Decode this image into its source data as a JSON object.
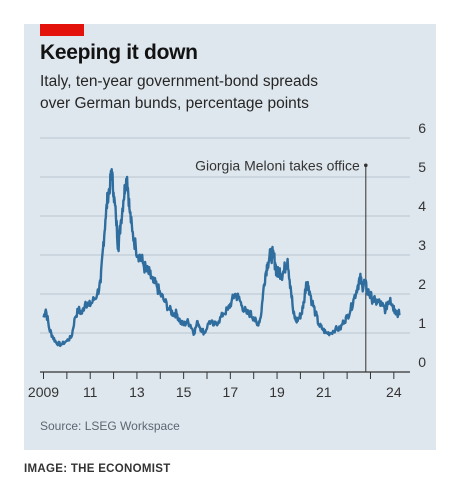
{
  "header": {
    "title": "Keeping it down",
    "subtitle_line1": "Italy, ten-year government-bond spreads",
    "subtitle_line2": "over German bunds, percentage points"
  },
  "footer": {
    "source": "Source: LSEG Workspace",
    "credit": "IMAGE: THE ECONOMIST"
  },
  "colors": {
    "accent": "#e3120b",
    "line": "#2e6d9e",
    "background": "#dfe7ee",
    "grid": "#b7c4cf"
  },
  "chart_data": {
    "type": "line",
    "title": "Keeping it down",
    "subtitle": "Italy, ten-year government-bond spreads over German bunds, percentage points",
    "ylabel": "",
    "xlabel": "",
    "ylim": [
      0,
      6
    ],
    "xlim": [
      2008.85,
      2024.35
    ],
    "y_ticks": [
      "0",
      "1",
      "2",
      "3",
      "4",
      "5",
      "6"
    ],
    "x_tick_labels": [
      {
        "x": 2009,
        "label": "2009"
      },
      {
        "x": 2011,
        "label": "11"
      },
      {
        "x": 2013,
        "label": "13"
      },
      {
        "x": 2015,
        "label": "15"
      },
      {
        "x": 2017,
        "label": "17"
      },
      {
        "x": 2019,
        "label": "19"
      },
      {
        "x": 2021,
        "label": "21"
      },
      {
        "x": 2024,
        "label": "24"
      }
    ],
    "grid": true,
    "annotation": {
      "x": 2022.8,
      "label": "Giorgia Meloni takes office"
    },
    "series": [
      {
        "values": [
          [
            2009.0,
            1.4
          ],
          [
            2009.1,
            1.6
          ],
          [
            2009.25,
            1.1
          ],
          [
            2009.4,
            0.9
          ],
          [
            2009.55,
            0.75
          ],
          [
            2009.75,
            0.7
          ],
          [
            2010.0,
            0.8
          ],
          [
            2010.2,
            0.9
          ],
          [
            2010.35,
            1.4
          ],
          [
            2010.5,
            1.6
          ],
          [
            2010.65,
            1.5
          ],
          [
            2010.8,
            1.8
          ],
          [
            2010.95,
            1.7
          ],
          [
            2011.1,
            1.8
          ],
          [
            2011.3,
            2.0
          ],
          [
            2011.45,
            2.3
          ],
          [
            2011.55,
            3.2
          ],
          [
            2011.65,
            3.9
          ],
          [
            2011.75,
            4.5
          ],
          [
            2011.85,
            4.8
          ],
          [
            2011.92,
            5.2
          ],
          [
            2012.0,
            4.6
          ],
          [
            2012.1,
            4.0
          ],
          [
            2012.2,
            3.2
          ],
          [
            2012.3,
            3.8
          ],
          [
            2012.42,
            4.4
          ],
          [
            2012.5,
            4.8
          ],
          [
            2012.58,
            5.0
          ],
          [
            2012.68,
            4.2
          ],
          [
            2012.8,
            3.6
          ],
          [
            2012.95,
            3.2
          ],
          [
            2013.1,
            3.0
          ],
          [
            2013.25,
            2.8
          ],
          [
            2013.4,
            2.6
          ],
          [
            2013.55,
            2.5
          ],
          [
            2013.7,
            2.3
          ],
          [
            2013.85,
            2.2
          ],
          [
            2014.0,
            2.0
          ],
          [
            2014.2,
            1.8
          ],
          [
            2014.4,
            1.6
          ],
          [
            2014.55,
            1.5
          ],
          [
            2014.7,
            1.5
          ],
          [
            2014.85,
            1.3
          ],
          [
            2015.0,
            1.2
          ],
          [
            2015.15,
            1.3
          ],
          [
            2015.3,
            1.2
          ],
          [
            2015.45,
            1.0
          ],
          [
            2015.6,
            1.3
          ],
          [
            2015.75,
            1.1
          ],
          [
            2015.9,
            1.0
          ],
          [
            2016.1,
            1.3
          ],
          [
            2016.3,
            1.2
          ],
          [
            2016.5,
            1.3
          ],
          [
            2016.7,
            1.5
          ],
          [
            2016.9,
            1.6
          ],
          [
            2017.05,
            1.8
          ],
          [
            2017.2,
            2.0
          ],
          [
            2017.35,
            1.9
          ],
          [
            2017.5,
            1.7
          ],
          [
            2017.7,
            1.5
          ],
          [
            2017.85,
            1.5
          ],
          [
            2018.0,
            1.4
          ],
          [
            2018.15,
            1.2
          ],
          [
            2018.3,
            1.4
          ],
          [
            2018.4,
            2.0
          ],
          [
            2018.5,
            2.5
          ],
          [
            2018.6,
            2.8
          ],
          [
            2018.72,
            3.0
          ],
          [
            2018.82,
            3.0
          ],
          [
            2018.92,
            2.8
          ],
          [
            2019.0,
            2.5
          ],
          [
            2019.1,
            2.6
          ],
          [
            2019.2,
            2.5
          ],
          [
            2019.3,
            2.6
          ],
          [
            2019.45,
            2.9
          ],
          [
            2019.58,
            2.2
          ],
          [
            2019.7,
            1.5
          ],
          [
            2019.82,
            1.3
          ],
          [
            2019.95,
            1.4
          ],
          [
            2020.05,
            1.5
          ],
          [
            2020.15,
            1.8
          ],
          [
            2020.25,
            2.3
          ],
          [
            2020.35,
            2.2
          ],
          [
            2020.5,
            1.8
          ],
          [
            2020.65,
            1.5
          ],
          [
            2020.8,
            1.2
          ],
          [
            2020.95,
            1.1
          ],
          [
            2021.1,
            1.0
          ],
          [
            2021.3,
            1.0
          ],
          [
            2021.5,
            1.1
          ],
          [
            2021.7,
            1.1
          ],
          [
            2021.85,
            1.3
          ],
          [
            2022.0,
            1.4
          ],
          [
            2022.15,
            1.6
          ],
          [
            2022.3,
            1.9
          ],
          [
            2022.45,
            2.2
          ],
          [
            2022.55,
            2.4
          ],
          [
            2022.65,
            2.2
          ],
          [
            2022.75,
            2.3
          ],
          [
            2022.85,
            2.1
          ],
          [
            2022.95,
            2.0
          ],
          [
            2023.05,
            1.9
          ],
          [
            2023.2,
            1.8
          ],
          [
            2023.35,
            1.8
          ],
          [
            2023.5,
            1.7
          ],
          [
            2023.65,
            1.6
          ],
          [
            2023.75,
            1.8
          ],
          [
            2023.85,
            1.9
          ],
          [
            2023.95,
            1.7
          ],
          [
            2024.05,
            1.6
          ],
          [
            2024.15,
            1.5
          ],
          [
            2024.25,
            1.5
          ]
        ]
      }
    ]
  }
}
